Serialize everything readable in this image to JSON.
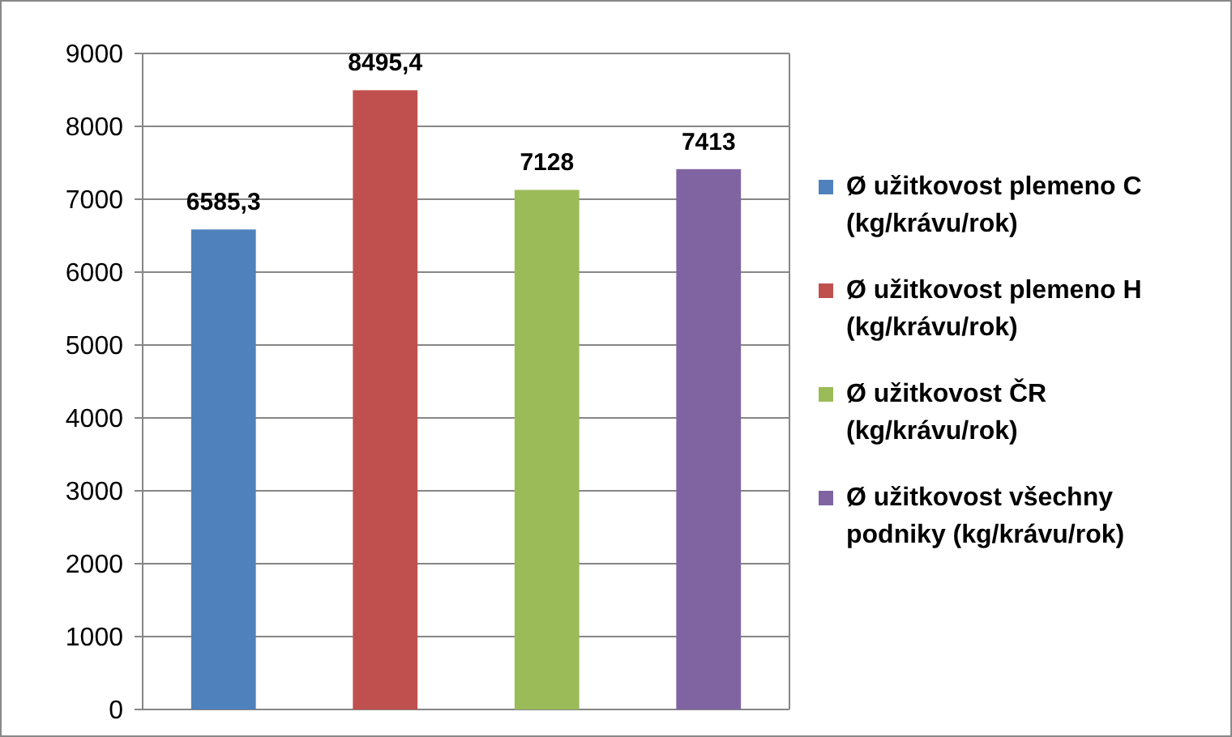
{
  "chart_data": {
    "type": "bar",
    "categories": [
      null,
      null,
      null,
      null
    ],
    "series": [
      {
        "name": "Ø užitkovost plemeno C (kg/krávu/rok)",
        "color": "#4f81bd",
        "values": [
          6585.3,
          null,
          null,
          null
        ],
        "value_labels": [
          "6585,3",
          null,
          null,
          null
        ]
      },
      {
        "name": "Ø užitkovost plemeno H (kg/krávu/rok)",
        "color": "#c0504d",
        "values": [
          null,
          8495.4,
          null,
          null
        ],
        "value_labels": [
          null,
          "8495,4",
          null,
          null
        ]
      },
      {
        "name": "Ø užitkovost ČR (kg/krávu/rok)",
        "color": "#9bbb59",
        "values": [
          null,
          null,
          7128,
          null
        ],
        "value_labels": [
          null,
          null,
          "7128",
          null
        ]
      },
      {
        "name": "Ø užitkovost všechny podniky (kg/krávu/rok)",
        "color": "#8064a2",
        "values": [
          null,
          null,
          null,
          7413
        ],
        "value_labels": [
          null,
          null,
          null,
          "7413"
        ]
      }
    ],
    "ylim": [
      0,
      9000
    ],
    "yticks": [
      0,
      1000,
      2000,
      3000,
      4000,
      5000,
      6000,
      7000,
      8000,
      9000
    ],
    "grid": "y",
    "legend": "right"
  }
}
